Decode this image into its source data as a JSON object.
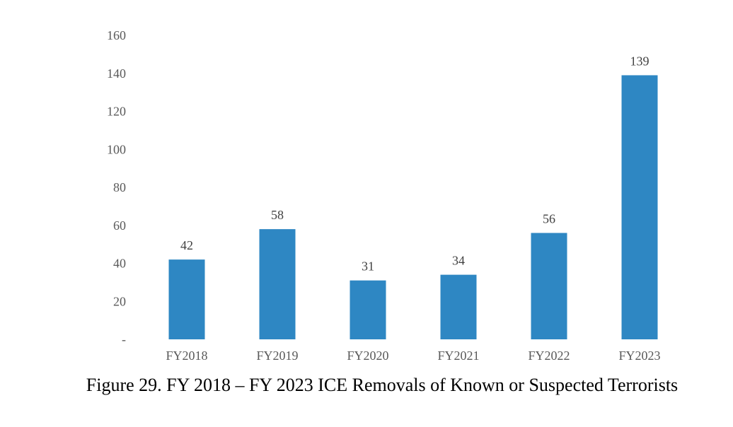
{
  "caption": "Figure 29. FY 2018 – FY 2023 ICE Removals of Known or Suspected Terrorists",
  "chart_data": {
    "type": "bar",
    "title": "",
    "xlabel": "",
    "ylabel": "",
    "categories": [
      "FY2018",
      "FY2019",
      "FY2020",
      "FY2021",
      "FY2022",
      "FY2023"
    ],
    "values": [
      42,
      58,
      31,
      34,
      56,
      139
    ],
    "ylim": [
      0,
      160
    ],
    "yticks": [
      0,
      20,
      40,
      60,
      80,
      100,
      120,
      140,
      160
    ],
    "ytick_labels": [
      "-",
      "20",
      "40",
      "60",
      "80",
      "100",
      "120",
      "140",
      "160"
    ],
    "data_labels": [
      "42",
      "58",
      "31",
      "34",
      "56",
      "139"
    ],
    "grid": false,
    "legend": "none",
    "bar_color": "#2E87C3"
  }
}
